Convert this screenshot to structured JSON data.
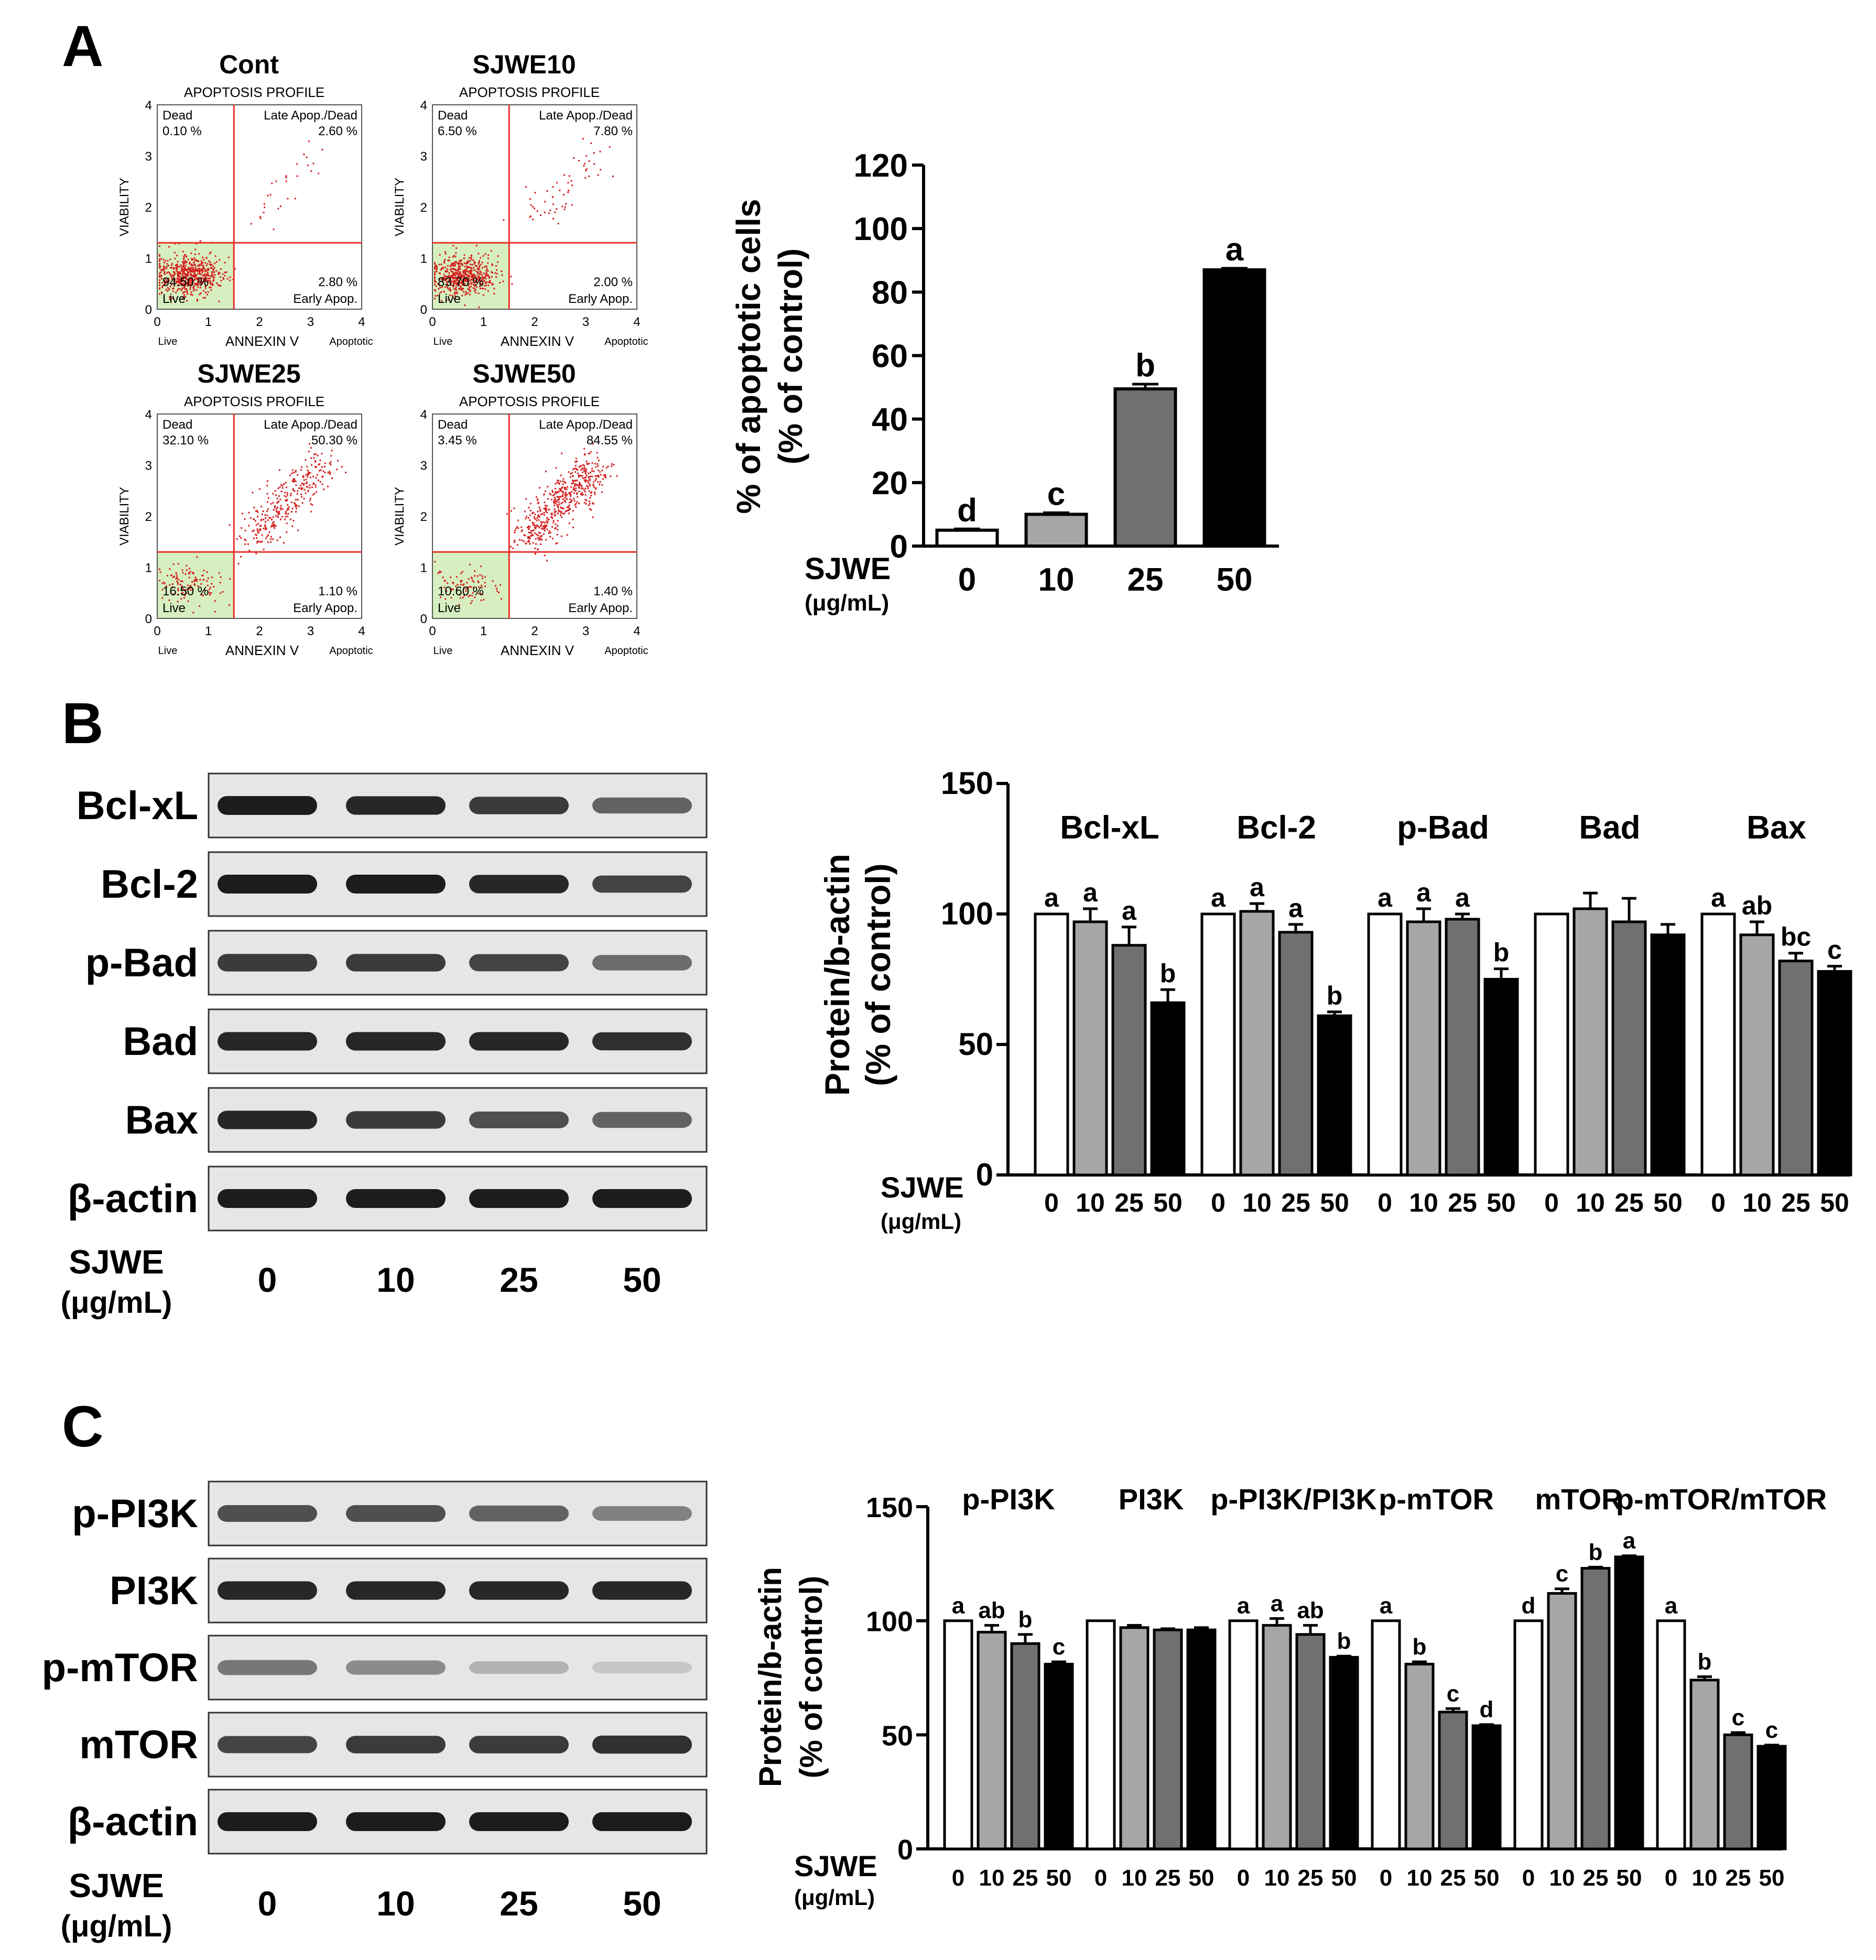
{
  "colors": {
    "white_bar": "#ffffff",
    "light_bar": "#a6a6a6",
    "dark_bar": "#707070",
    "black_bar": "#000000",
    "quadrant_line": "#e8302a",
    "dot": "#d42020",
    "live_quadrant": "#d7efc0",
    "blot_bg": "#e6e6e6",
    "band": "#1c1c1c"
  },
  "panel_a": {
    "letter": "A",
    "flow": {
      "profile_label": "APOPTOSIS PROFILE",
      "y_axis_label": "VIABILITY",
      "x_axis_label": "ANNEXIN V",
      "x_live_label": "Live",
      "x_apoptotic_label": "Apoptotic",
      "q_dead": "Dead",
      "q_late": "Late Apop./Dead",
      "q_live": "Live",
      "q_early": "Early Apop.",
      "y_ticks": [
        "0",
        "1",
        "2",
        "3",
        "4"
      ],
      "x_ticks": [
        "0",
        "1",
        "2",
        "3",
        "4"
      ],
      "plots": [
        {
          "title": "Cont",
          "dead": "0.10 %",
          "late": "2.60 %",
          "live": "94.50 %",
          "early": "2.80 %",
          "late_fraction": 0.026,
          "live_fraction": 0.945
        },
        {
          "title": "SJWE10",
          "dead": "6.50 %",
          "late": "7.80 %",
          "live": "83.70 %",
          "early": "2.00 %",
          "late_fraction": 0.078,
          "live_fraction": 0.837
        },
        {
          "title": "SJWE25",
          "dead": "32.10 %",
          "late": "50.30 %",
          "live": "16.50 %",
          "early": "1.10 %",
          "late_fraction": 0.503,
          "live_fraction": 0.165
        },
        {
          "title": "SJWE50",
          "dead": "3.45 %",
          "late": "84.55 %",
          "live": "10.60 %",
          "early": "1.40 %",
          "late_fraction": 0.8455,
          "live_fraction": 0.106
        }
      ]
    }
  },
  "panel_b": {
    "letter": "B",
    "blot": {
      "rows": [
        "Bcl-xL",
        "Bcl-2",
        "p-Bad",
        "Bad",
        "Bax",
        "β-actin"
      ],
      "row_intensity": [
        [
          1.0,
          0.95,
          0.85,
          0.65
        ],
        [
          1.0,
          1.0,
          0.95,
          0.8
        ],
        [
          0.85,
          0.85,
          0.8,
          0.6
        ],
        [
          0.95,
          0.95,
          0.95,
          0.9
        ],
        [
          0.95,
          0.85,
          0.75,
          0.65
        ],
        [
          1.0,
          1.0,
          1.0,
          1.0
        ]
      ],
      "treatment_label_line1": "SJWE",
      "treatment_label_line2": "(μg/mL)",
      "lanes": [
        "0",
        "10",
        "25",
        "50"
      ]
    }
  },
  "panel_c": {
    "letter": "C",
    "blot": {
      "rows": [
        "p-PI3K",
        "PI3K",
        "p-mTOR",
        "mTOR",
        "β-actin"
      ],
      "row_intensity": [
        [
          0.75,
          0.75,
          0.65,
          0.5
        ],
        [
          0.95,
          0.95,
          0.95,
          0.95
        ],
        [
          0.55,
          0.45,
          0.25,
          0.15
        ],
        [
          0.8,
          0.85,
          0.85,
          0.9
        ],
        [
          1.0,
          1.0,
          1.0,
          1.0
        ]
      ],
      "treatment_label_line1": "SJWE",
      "treatment_label_line2": "(μg/mL)",
      "lanes": [
        "0",
        "10",
        "25",
        "50"
      ]
    }
  },
  "chart_data": [
    {
      "type": "bar",
      "id": "apoptotic-cells",
      "ylabel_line1": "% of apoptotic cells",
      "ylabel_line2": "(% of control)",
      "xlabel_line1": "SJWE",
      "xlabel_line2": "(μg/mL)",
      "categories": [
        "0",
        "10",
        "25",
        "50"
      ],
      "values": [
        5,
        10,
        49.5,
        87
      ],
      "errors": [
        0.4,
        0.5,
        1.5,
        0.5
      ],
      "letters": [
        "d",
        "c",
        "b",
        "a"
      ],
      "ylim": [
        0,
        120
      ],
      "yticks": [
        "0",
        "20",
        "40",
        "60",
        "80",
        "100",
        "120"
      ]
    },
    {
      "type": "bar",
      "id": "bcl2-family",
      "ylabel_line1": "Protein/b-actin",
      "ylabel_line2": "(% of control)",
      "xlabel_line1": "SJWE",
      "xlabel_line2": "(μg/mL)",
      "categories": [
        "0",
        "10",
        "25",
        "50"
      ],
      "ylim": [
        0,
        150
      ],
      "yticks": [
        "0",
        "50",
        "100",
        "150"
      ],
      "groups": [
        {
          "name": "Bcl-xL",
          "values": [
            100,
            97,
            88,
            66
          ],
          "errors": [
            0,
            5,
            7,
            5
          ],
          "letters": [
            "a",
            "a",
            "a",
            "b"
          ]
        },
        {
          "name": "Bcl-2",
          "values": [
            100,
            101,
            93,
            61
          ],
          "errors": [
            0,
            3,
            3,
            1.5
          ],
          "letters": [
            "a",
            "a",
            "a",
            "b"
          ]
        },
        {
          "name": "p-Bad",
          "values": [
            100,
            97,
            98,
            75
          ],
          "errors": [
            0,
            5,
            2,
            4
          ],
          "letters": [
            "a",
            "a",
            "a",
            "b"
          ]
        },
        {
          "name": "Bad",
          "values": [
            100,
            102,
            97,
            92
          ],
          "errors": [
            0,
            6,
            9,
            4
          ],
          "letters": [
            "",
            "",
            "",
            ""
          ]
        },
        {
          "name": "Bax",
          "values": [
            100,
            92,
            82,
            78
          ],
          "errors": [
            0,
            5,
            3,
            2
          ],
          "letters": [
            "a",
            "ab",
            "bc",
            "c"
          ]
        }
      ]
    },
    {
      "type": "bar",
      "id": "pi3k-mtor",
      "ylabel_line1": "Protein/b-actin",
      "ylabel_line2": "(% of control)",
      "xlabel_line1": "SJWE",
      "xlabel_line2": "(μg/mL)",
      "categories": [
        "0",
        "10",
        "25",
        "50"
      ],
      "ylim": [
        0,
        150
      ],
      "yticks": [
        "0",
        "50",
        "100",
        "150"
      ],
      "groups": [
        {
          "name": "p-PI3K",
          "values": [
            100,
            95,
            90,
            81
          ],
          "errors": [
            0,
            3,
            4,
            1
          ],
          "letters": [
            "a",
            "ab",
            "b",
            "c"
          ]
        },
        {
          "name": "PI3K",
          "values": [
            100,
            97,
            96,
            96
          ],
          "errors": [
            0,
            1,
            0.5,
            1
          ],
          "letters": [
            "",
            "",
            "",
            ""
          ]
        },
        {
          "name": "p-PI3K/PI3K",
          "values": [
            100,
            98,
            94,
            84
          ],
          "errors": [
            0,
            3,
            4,
            0.5
          ],
          "letters": [
            "a",
            "a",
            "ab",
            "b"
          ]
        },
        {
          "name": "p-mTOR",
          "values": [
            100,
            81,
            60,
            54
          ],
          "errors": [
            0,
            1,
            1.5,
            0.5
          ],
          "letters": [
            "a",
            "b",
            "c",
            "d"
          ]
        },
        {
          "name": "mTOR",
          "values": [
            100,
            112,
            123,
            128
          ],
          "errors": [
            0,
            2,
            0.5,
            0.5
          ],
          "letters": [
            "d",
            "c",
            "b",
            "a"
          ]
        },
        {
          "name": "p-mTOR/mTOR",
          "values": [
            100,
            74,
            50,
            45
          ],
          "errors": [
            0,
            1.5,
            1,
            0.5
          ],
          "letters": [
            "a",
            "b",
            "c",
            "c"
          ]
        }
      ]
    }
  ]
}
